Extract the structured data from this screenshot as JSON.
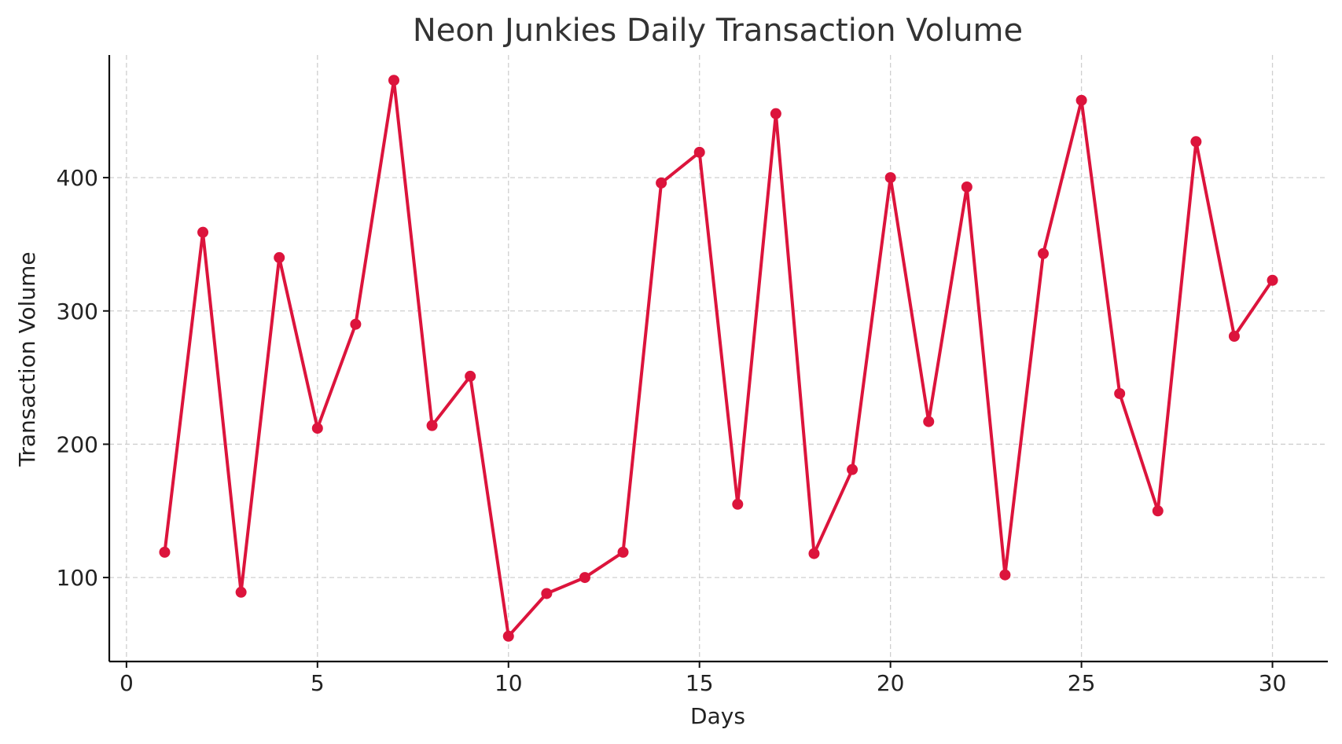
{
  "chart_data": {
    "type": "line",
    "title": "Neon Junkies Daily Transaction Volume",
    "xlabel": "Days",
    "ylabel": "Transaction Volume",
    "xlim": [
      -0.45,
      31.45
    ],
    "ylim": [
      37,
      492
    ],
    "xticks": [
      0,
      5,
      10,
      15,
      20,
      25,
      30
    ],
    "yticks": [
      100,
      200,
      300,
      400
    ],
    "grid": true,
    "color": "#dc143c",
    "x": [
      1,
      2,
      3,
      4,
      5,
      6,
      7,
      8,
      9,
      10,
      11,
      12,
      13,
      14,
      15,
      16,
      17,
      18,
      19,
      20,
      21,
      22,
      23,
      24,
      25,
      26,
      27,
      28,
      29,
      30
    ],
    "y": [
      119,
      359,
      89,
      340,
      212,
      290,
      473,
      214,
      251,
      56,
      88,
      100,
      119,
      396,
      419,
      155,
      448,
      118,
      181,
      400,
      217,
      393,
      102,
      343,
      458,
      238,
      150,
      427,
      281,
      323
    ]
  }
}
